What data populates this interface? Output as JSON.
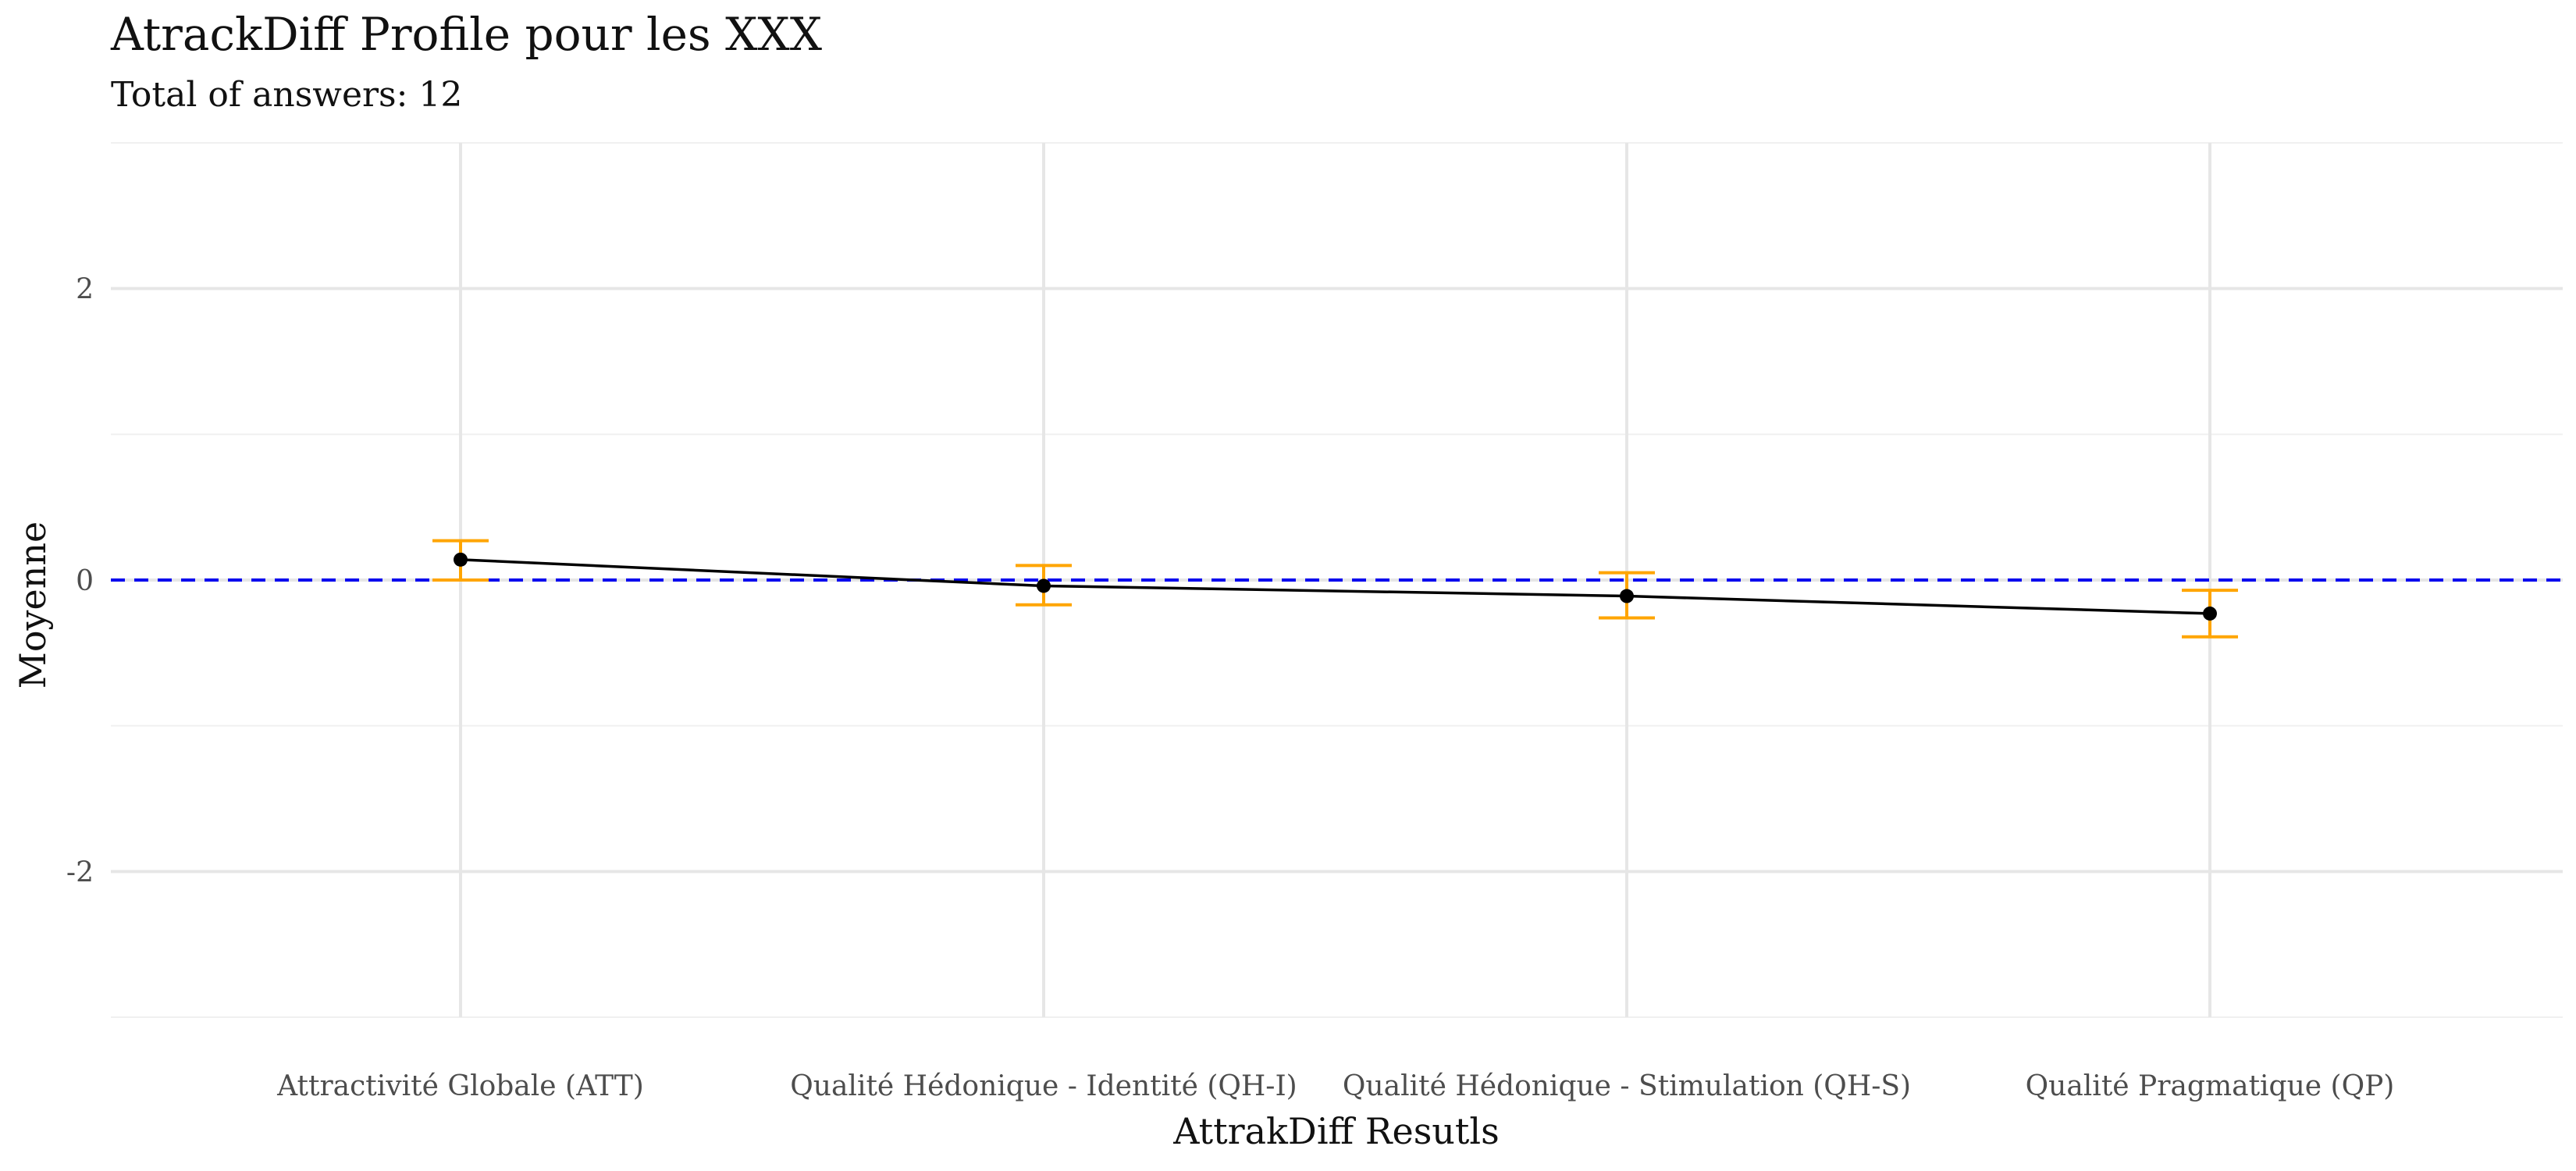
{
  "chart_data": {
    "type": "line",
    "title": "AtrackDiff Profile pour les XXX",
    "subtitle": "Total of answers: 12",
    "xlabel": "AttrakDiff Resutls",
    "ylabel": "Moyenne",
    "categories": [
      "Attractivité Globale (ATT)",
      "Qualité Hédonique - Identité (QH-I)",
      "Qualité Hédonique - Stimulation (QH-S)",
      "Qualité Pragmatique (QP)"
    ],
    "values": [
      0.14,
      -0.04,
      -0.11,
      -0.23
    ],
    "error_low": [
      0.0,
      -0.17,
      -0.26,
      -0.39
    ],
    "error_high": [
      0.27,
      0.1,
      0.05,
      -0.07
    ],
    "ylim": [
      -3.0,
      3.0
    ],
    "yticks": [
      -2,
      0,
      2
    ],
    "ytick_labels": [
      "-2",
      "0",
      "2"
    ],
    "reference_line": {
      "y": 0,
      "style": "dashed",
      "color": "#0000ee"
    },
    "line_color": "#000000",
    "point_color": "#000000",
    "errorbar_color": "#ffa500",
    "grid": true,
    "legend": "none"
  }
}
